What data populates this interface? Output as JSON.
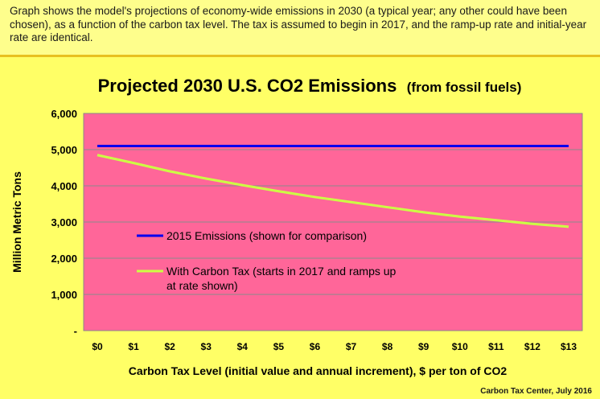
{
  "caption": "Graph shows the model's projections of economy-wide emissions in 2030 (a typical year; any other could have been chosen), as a function of the carbon tax level. The tax is assumed to begin in 2017, and the ramp-up rate and initial-year rate are identical.",
  "credit": "Carbon Tax Center, July 2016",
  "colors": {
    "background": "#ffff66",
    "plot": "#ff6699",
    "baseline": "#0000ee",
    "carbon_tax": "#ccff44"
  },
  "chart_data": {
    "type": "line",
    "title": "Projected 2030 U.S. CO2 Emissions",
    "title_suffix": "(from fossil fuels)",
    "xlabel": "Carbon Tax Level (initial value and annual increment), $ per ton of CO2",
    "ylabel": "Million Metric Tons",
    "x": [
      0,
      1,
      2,
      3,
      4,
      5,
      6,
      7,
      8,
      9,
      10,
      11,
      12,
      13
    ],
    "xtick_labels": [
      "$0",
      "$1",
      "$2",
      "$3",
      "$4",
      "$5",
      "$6",
      "$7",
      "$8",
      "$9",
      "$10",
      "$11",
      "$12",
      "$13"
    ],
    "ylim": [
      0,
      6000
    ],
    "yticks": [
      0,
      1000,
      2000,
      3000,
      4000,
      5000,
      6000
    ],
    "ytick_labels": [
      "-",
      "1,000",
      "2,000",
      "3,000",
      "4,000",
      "5,000",
      "6,000"
    ],
    "grid": true,
    "series": [
      {
        "name": "2015 Emissions (shown for comparison)",
        "values": [
          5100,
          5100,
          5100,
          5100,
          5100,
          5100,
          5100,
          5100,
          5100,
          5100,
          5100,
          5100,
          5100,
          5100
        ]
      },
      {
        "name": "With Carbon Tax (starts in 2017 and ramps up at rate shown)",
        "values": [
          4850,
          4630,
          4400,
          4200,
          4020,
          3850,
          3690,
          3550,
          3410,
          3270,
          3150,
          3050,
          2950,
          2870
        ]
      }
    ]
  }
}
